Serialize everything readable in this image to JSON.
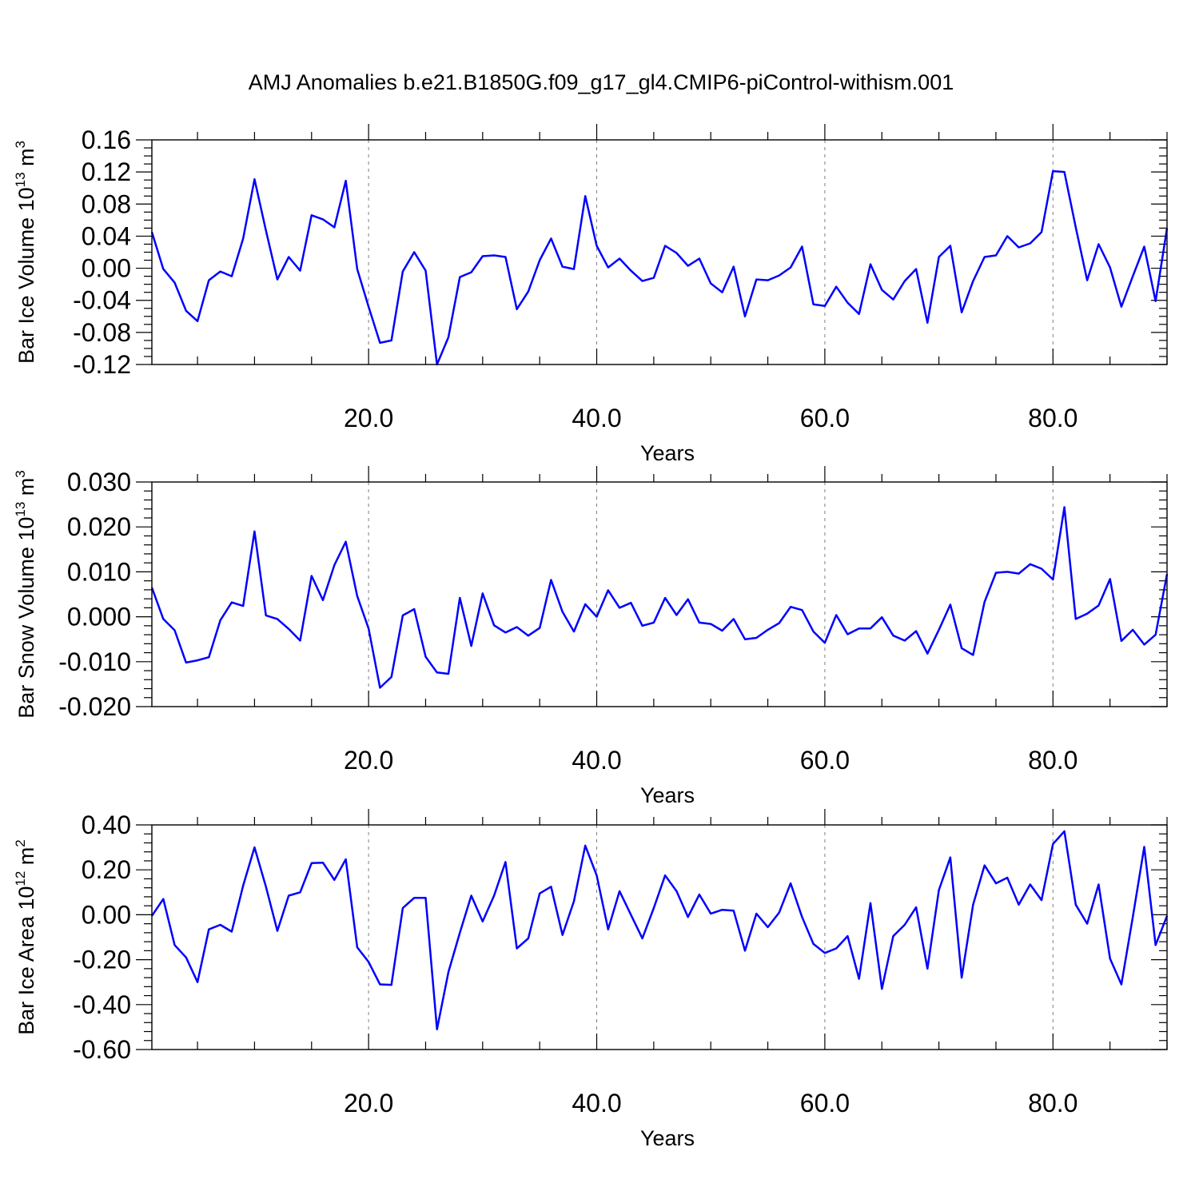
{
  "title": "AMJ Anomalies b.e21.B1850G.f09_g17_gl4.CMIP6-piControl-withism.001",
  "colors": {
    "line": "#0000ff"
  },
  "chart_data": [
    {
      "type": "line",
      "xlabel": "Years",
      "ylabel": "Bar Ice Volume 10",
      "ylabel_exp": "13",
      "ylabel_unit": " m",
      "ylabel_unit_exp": "3",
      "xlim": [
        1,
        90
      ],
      "ylim": [
        -0.12,
        0.16
      ],
      "yticks": [
        -0.12,
        -0.08,
        -0.04,
        0.0,
        0.04,
        0.08,
        0.12,
        0.16
      ],
      "ytick_labels": [
        "-0.12",
        "-0.08",
        "-0.04",
        "0.00",
        "0.04",
        "0.08",
        "0.12",
        "0.16"
      ],
      "yminor_step": 0.01,
      "xticks": [
        20,
        40,
        60,
        80
      ],
      "xtick_labels": [
        "20.0",
        "40.0",
        "60.0",
        "80.0"
      ],
      "xminor_step": 5,
      "grid_x": true,
      "series": [
        {
          "x": [
            1,
            2,
            3,
            4,
            5,
            6,
            7,
            8,
            9,
            10,
            11,
            12,
            13,
            14,
            15,
            16,
            17,
            18,
            19,
            20,
            21,
            22,
            23,
            24,
            25,
            26,
            27,
            28,
            29,
            30,
            31,
            32,
            33,
            34,
            35,
            36,
            37,
            38,
            39,
            40,
            41,
            42,
            43,
            44,
            45,
            46,
            47,
            48,
            49,
            50,
            51,
            52,
            53,
            54,
            55,
            56,
            57,
            58,
            59,
            60,
            61,
            62,
            63,
            64,
            65,
            66,
            67,
            68,
            69,
            70,
            71,
            72,
            73,
            74,
            75,
            76,
            77,
            78,
            79,
            80,
            81,
            82,
            83,
            84,
            85,
            86,
            87,
            88,
            89,
            90
          ],
          "values": [
            0.045,
            -0.001,
            -0.018,
            -0.053,
            -0.066,
            -0.015,
            -0.004,
            -0.01,
            0.037,
            0.111,
            0.047,
            -0.014,
            0.014,
            -0.003,
            0.066,
            0.061,
            0.051,
            0.109,
            -0.001,
            -0.048,
            -0.093,
            -0.09,
            -0.004,
            0.02,
            -0.003,
            -0.12,
            -0.086,
            -0.011,
            -0.005,
            0.015,
            0.016,
            0.014,
            -0.051,
            -0.029,
            0.01,
            0.037,
            0.002,
            -0.001,
            0.09,
            0.028,
            0.001,
            0.012,
            -0.003,
            -0.016,
            -0.012,
            0.028,
            0.019,
            0.003,
            0.012,
            -0.019,
            -0.03,
            0.002,
            -0.06,
            -0.014,
            -0.015,
            -0.009,
            0.001,
            0.027,
            -0.045,
            -0.047,
            -0.023,
            -0.043,
            -0.057,
            0.005,
            -0.027,
            -0.039,
            -0.016,
            -0.001,
            -0.068,
            0.014,
            0.028,
            -0.055,
            -0.016,
            0.014,
            0.016,
            0.04,
            0.026,
            0.031,
            0.045,
            0.121,
            0.12,
            0.051,
            -0.015,
            0.03,
            0.001,
            -0.048,
            -0.01,
            0.027,
            -0.041,
            0.05
          ]
        }
      ]
    },
    {
      "type": "line",
      "xlabel": "Years",
      "ylabel": "Bar Snow Volume 10",
      "ylabel_exp": "13",
      "ylabel_unit": " m",
      "ylabel_unit_exp": "3",
      "xlim": [
        1,
        90
      ],
      "ylim": [
        -0.02,
        0.03
      ],
      "yticks": [
        -0.02,
        -0.01,
        0.0,
        0.01,
        0.02,
        0.03
      ],
      "ytick_labels": [
        "-0.020",
        "-0.010",
        "0.000",
        "0.010",
        "0.020",
        "0.030"
      ],
      "yminor_step": 0.002,
      "xticks": [
        20,
        40,
        60,
        80
      ],
      "xtick_labels": [
        "20.0",
        "40.0",
        "60.0",
        "80.0"
      ],
      "xminor_step": 5,
      "grid_x": true,
      "series": [
        {
          "x": [
            1,
            2,
            3,
            4,
            5,
            6,
            7,
            8,
            9,
            10,
            11,
            12,
            13,
            14,
            15,
            16,
            17,
            18,
            19,
            20,
            21,
            22,
            23,
            24,
            25,
            26,
            27,
            28,
            29,
            30,
            31,
            32,
            33,
            34,
            35,
            36,
            37,
            38,
            39,
            40,
            41,
            42,
            43,
            44,
            45,
            46,
            47,
            48,
            49,
            50,
            51,
            52,
            53,
            54,
            55,
            56,
            57,
            58,
            59,
            60,
            61,
            62,
            63,
            64,
            65,
            66,
            67,
            68,
            69,
            70,
            71,
            72,
            73,
            74,
            75,
            76,
            77,
            78,
            79,
            80,
            81,
            82,
            83,
            84,
            85,
            86,
            87,
            88,
            89,
            90
          ],
          "values": [
            0.0065,
            -0.0005,
            -0.003,
            -0.0102,
            -0.0097,
            -0.009,
            -0.0008,
            0.0032,
            0.0024,
            0.019,
            0.0003,
            -0.0005,
            -0.0027,
            -0.0053,
            0.0091,
            0.0037,
            0.0115,
            0.0167,
            0.0046,
            -0.0026,
            -0.0158,
            -0.0134,
            0.0003,
            0.0017,
            -0.0089,
            -0.0124,
            -0.0127,
            0.0042,
            -0.0065,
            0.0052,
            -0.0019,
            -0.0035,
            -0.0023,
            -0.0042,
            -0.0025,
            0.0082,
            0.0011,
            -0.0033,
            0.0028,
            0.0,
            0.0059,
            0.002,
            0.0031,
            -0.002,
            -0.0013,
            0.0042,
            0.0004,
            0.0039,
            -0.0013,
            -0.0016,
            -0.0031,
            -0.0005,
            -0.005,
            -0.0047,
            -0.0029,
            -0.0014,
            0.0022,
            0.0015,
            -0.0033,
            -0.0058,
            0.0004,
            -0.0039,
            -0.0026,
            -0.0026,
            -0.0001,
            -0.0042,
            -0.0053,
            -0.0032,
            -0.0082,
            -0.0029,
            0.0027,
            -0.007,
            -0.0085,
            0.0033,
            0.0098,
            0.01,
            0.0096,
            0.0117,
            0.0107,
            0.0083,
            0.0244,
            -0.0005,
            0.0007,
            0.0025,
            0.0084,
            -0.0054,
            -0.0029,
            -0.0062,
            -0.004,
            0.0095
          ]
        }
      ]
    },
    {
      "type": "line",
      "xlabel": "Years",
      "ylabel": "Bar Ice Area 10",
      "ylabel_exp": "12",
      "ylabel_unit": " m",
      "ylabel_unit_exp": "2",
      "xlim": [
        1,
        90
      ],
      "ylim": [
        -0.6,
        0.4
      ],
      "yticks": [
        -0.6,
        -0.4,
        -0.2,
        0.0,
        0.2,
        0.4
      ],
      "ytick_labels": [
        "-0.60",
        "-0.40",
        "-0.20",
        "0.00",
        "0.20",
        "0.40"
      ],
      "yminor_step": 0.04,
      "xticks": [
        20,
        40,
        60,
        80
      ],
      "xtick_labels": [
        "20.0",
        "40.0",
        "60.0",
        "80.0"
      ],
      "xminor_step": 5,
      "grid_x": true,
      "series": [
        {
          "x": [
            1,
            2,
            3,
            4,
            5,
            6,
            7,
            8,
            9,
            10,
            11,
            12,
            13,
            14,
            15,
            16,
            17,
            18,
            19,
            20,
            21,
            22,
            23,
            24,
            25,
            26,
            27,
            28,
            29,
            30,
            31,
            32,
            33,
            34,
            35,
            36,
            37,
            38,
            39,
            40,
            41,
            42,
            43,
            44,
            45,
            46,
            47,
            48,
            49,
            50,
            51,
            52,
            53,
            54,
            55,
            56,
            57,
            58,
            59,
            60,
            61,
            62,
            63,
            64,
            65,
            66,
            67,
            68,
            69,
            70,
            71,
            72,
            73,
            74,
            75,
            76,
            77,
            78,
            79,
            80,
            81,
            82,
            83,
            84,
            85,
            86,
            87,
            88,
            89,
            90
          ],
          "values": [
            -0.005,
            0.07,
            -0.135,
            -0.19,
            -0.3,
            -0.065,
            -0.045,
            -0.075,
            0.13,
            0.3,
            0.125,
            -0.072,
            0.085,
            0.1,
            0.23,
            0.232,
            0.155,
            0.247,
            -0.145,
            -0.21,
            -0.31,
            -0.312,
            0.03,
            0.075,
            0.075,
            -0.51,
            -0.255,
            -0.08,
            0.085,
            -0.03,
            0.085,
            0.235,
            -0.15,
            -0.105,
            0.095,
            0.125,
            -0.09,
            0.06,
            0.308,
            0.175,
            -0.065,
            0.105,
            0.0,
            -0.105,
            0.03,
            0.175,
            0.105,
            -0.01,
            0.09,
            0.005,
            0.022,
            0.018,
            -0.16,
            0.005,
            -0.055,
            0.01,
            0.14,
            -0.01,
            -0.13,
            -0.17,
            -0.15,
            -0.095,
            -0.285,
            0.052,
            -0.33,
            -0.095,
            -0.045,
            0.033,
            -0.24,
            0.11,
            0.255,
            -0.28,
            0.045,
            0.22,
            0.14,
            0.165,
            0.045,
            0.135,
            0.065,
            0.315,
            0.372,
            0.045,
            -0.04,
            0.135,
            -0.195,
            -0.31,
            -0.01,
            0.302,
            -0.135,
            -0.005
          ]
        }
      ]
    }
  ]
}
